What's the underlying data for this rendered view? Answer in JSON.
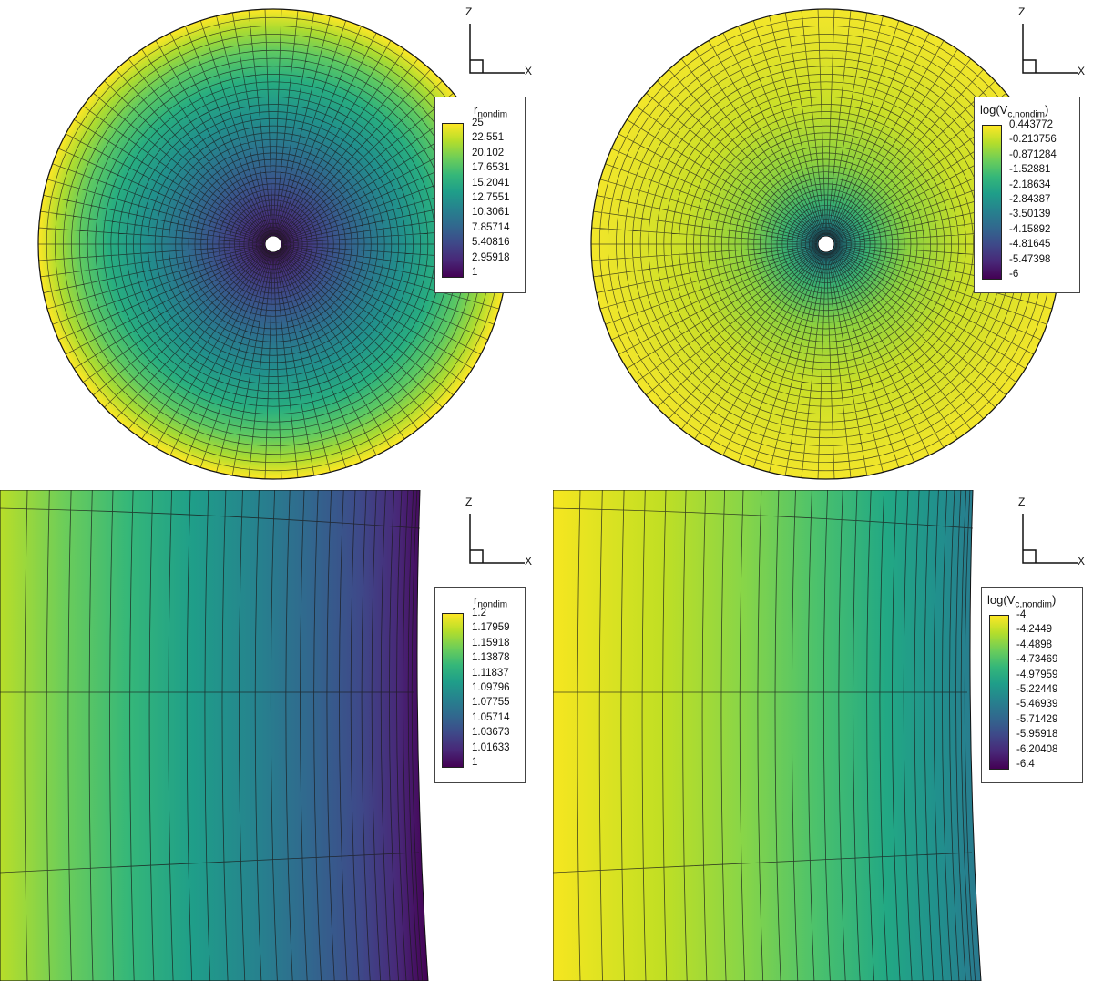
{
  "panels": [
    {
      "legend": {
        "title": "r",
        "title_sub": "nondim",
        "labels": [
          "25",
          "22.551",
          "20.102",
          "17.6531",
          "15.2041",
          "12.7551",
          "10.3061",
          "7.85714",
          "5.40816",
          "2.95918",
          "1"
        ]
      }
    },
    {
      "legend": {
        "title": "log(V",
        "title_sub": "c,nondim",
        "title_end": ")",
        "labels": [
          "0.443772",
          "-0.213756",
          "-0.871284",
          "-1.52881",
          "-2.18634",
          "-2.84387",
          "-3.50139",
          "-4.15892",
          "-4.81645",
          "-5.47398",
          "-6"
        ]
      }
    },
    {
      "legend": {
        "title": "r",
        "title_sub": "nondim",
        "labels": [
          "1.2",
          "1.17959",
          "1.15918",
          "1.13878",
          "1.11837",
          "1.09796",
          "1.07755",
          "1.05714",
          "1.03673",
          "1.01633",
          "1"
        ]
      }
    },
    {
      "legend": {
        "title": "log(V",
        "title_sub": "c,nondim",
        "title_end": ")",
        "labels": [
          "-4",
          "-4.2449",
          "-4.4898",
          "-4.73469",
          "-4.97959",
          "-5.22449",
          "-5.46939",
          "-5.71429",
          "-5.95918",
          "-6.20408",
          "-6.4"
        ]
      }
    }
  ],
  "axes": {
    "z": "Z",
    "x": "X"
  },
  "colors": {
    "viridis_top": "#fde725",
    "viridis_bottom": "#440154"
  }
}
